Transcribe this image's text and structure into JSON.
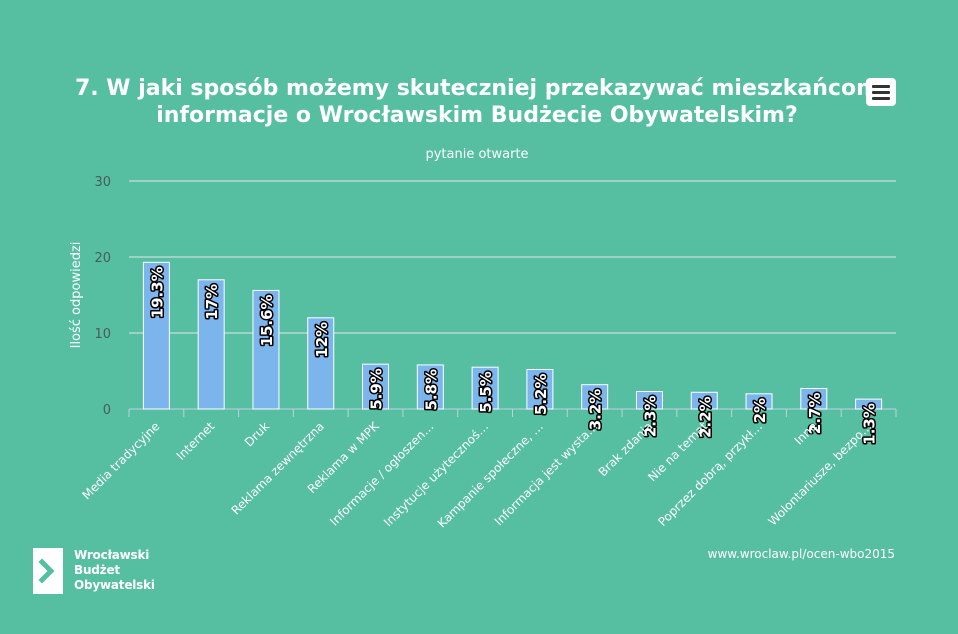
{
  "chart_data": {
    "type": "bar",
    "title_lines": [
      "7. W jaki sposób możemy skuteczniej przekazywać mieszkańcom",
      "informacje o Wrocławskim Budżecie Obywatelskim?"
    ],
    "subtitle": "pytanie otwarte",
    "ylabel": "Ilość odpowiedzi",
    "ylim": [
      0,
      30
    ],
    "yticks": [
      "0",
      "10",
      "20",
      "30"
    ],
    "categories": [
      "Media tradycyjne",
      "Internet",
      "Druk",
      "Reklama zewnętrzna",
      "Reklama w MPK",
      "Informacje / ogłoszen…",
      "Instytucje użytecznoś…",
      "Kampanie społeczne, …",
      "Informacja jest wysta…",
      "Brak zdania",
      "Nie na temat",
      "Poprzez dobrą, przykł…",
      "Inne",
      "Wolontariusze, bezpo…"
    ],
    "values": [
      19.3,
      17,
      15.6,
      12,
      5.9,
      5.8,
      5.5,
      5.2,
      3.2,
      2.3,
      2.2,
      2,
      2.7,
      1.3
    ],
    "data_labels": [
      "19.3%",
      "17%",
      "15.6%",
      "12%",
      "5.9%",
      "5.8%",
      "5.5%",
      "5.2%",
      "3.2%",
      "2.3%",
      "2.2%",
      "2%",
      "2.7%",
      "1.3%"
    ],
    "grid": true,
    "bar_color": "#7cb5ec",
    "background": "#56bfa2"
  },
  "credit": "www.wroclaw.pl/ocen-wbo2015",
  "logo": {
    "lines": [
      "Wrocławski",
      "Budżet",
      "Obywatelski"
    ]
  },
  "menu": {
    "icon": "hamburger-menu-icon"
  }
}
